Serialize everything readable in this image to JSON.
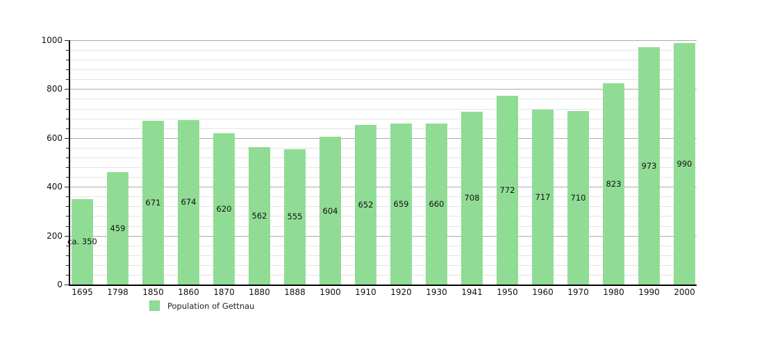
{
  "chart_data": {
    "type": "bar",
    "title": "",
    "xlabel": "",
    "ylabel": "",
    "categories": [
      "1695",
      "1798",
      "1850",
      "1860",
      "1870",
      "1880",
      "1888",
      "1900",
      "1910",
      "1920",
      "1930",
      "1941",
      "1950",
      "1960",
      "1970",
      "1980",
      "1990",
      "2000"
    ],
    "values": [
      350,
      459,
      671,
      674,
      620,
      562,
      555,
      604,
      652,
      659,
      660,
      708,
      772,
      717,
      710,
      823,
      973,
      990
    ],
    "bar_labels": [
      "ca. 350",
      "459",
      "671",
      "674",
      "620",
      "562",
      "555",
      "604",
      "652",
      "659",
      "660",
      "708",
      "772",
      "717",
      "710",
      "823",
      "973",
      "990"
    ],
    "ylim": [
      0,
      1000
    ],
    "y_major_step": 200,
    "y_minor_step": 40,
    "y_tick_labels": [
      "0",
      "200",
      "400",
      "600",
      "800",
      "1000"
    ],
    "grid": "horizontal, minor and major lines",
    "legend_position": "bottom-left",
    "legend_entries": [
      {
        "label": "Population of Gettnau",
        "color": "#90dc95"
      }
    ]
  },
  "legend": {
    "label": "Population of Gettnau"
  },
  "colors": {
    "bar": "#90dc95",
    "grid_major": "#ababab",
    "grid_minor": "#e4e4e4",
    "axis": "#000000",
    "text": "#111111",
    "background": "#ffffff"
  }
}
